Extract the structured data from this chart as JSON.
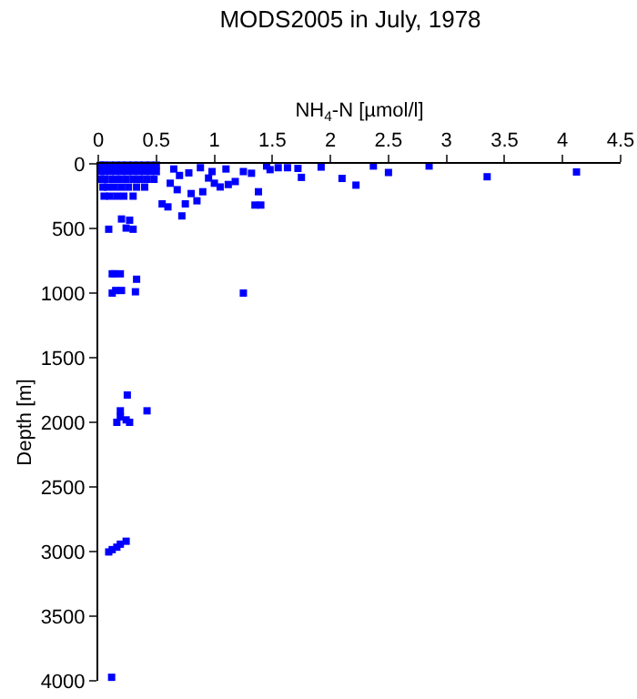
{
  "chart_data": {
    "type": "scatter",
    "title": "MODS2005 in July, 1978",
    "xlabel": "NH$_{4}$-N [µmol/l]",
    "ylabel": "Depth [m]",
    "x": [
      4.12,
      3.35,
      2.85,
      2.5,
      2.37,
      2.22,
      2.1,
      1.92,
      1.75,
      1.72,
      1.63,
      1.55,
      1.45,
      1.48,
      1.38,
      1.35,
      1.4,
      1.32,
      1.25,
      1.18,
      1.12,
      1.05,
      1.0,
      0.95,
      0.9,
      0.85,
      0.8,
      0.75,
      0.72,
      0.6,
      0.55,
      0.5,
      0.45,
      0.4,
      0.35,
      0.3,
      0.25,
      0.2,
      0.15,
      0.1,
      0.05,
      0.02,
      0.5,
      0.45,
      0.4,
      0.35,
      0.3,
      0.25,
      0.2,
      0.15,
      0.1,
      0.05,
      0.02,
      0.48,
      0.42,
      0.36,
      0.3,
      0.24,
      0.18,
      0.12,
      0.06,
      0.03,
      0.4,
      0.33,
      0.26,
      0.2,
      0.14,
      0.08,
      0.04,
      0.3,
      0.22,
      0.16,
      0.1,
      0.05,
      0.65,
      0.7,
      0.78,
      0.88,
      0.98,
      1.1,
      0.62,
      0.68,
      0.2,
      0.27,
      0.24,
      0.3,
      0.09,
      0.12,
      0.14,
      0.19,
      0.33,
      0.12,
      0.15,
      0.2,
      0.32,
      1.25,
      0.25,
      0.42,
      0.19,
      0.19,
      0.24,
      0.27,
      0.16,
      0.09,
      0.12,
      0.16,
      0.19,
      0.24,
      0.115
    ],
    "values": [
      63,
      100,
      17,
      67,
      17,
      165,
      113,
      25,
      105,
      35,
      30,
      30,
      17,
      45,
      216,
      319,
      319,
      73,
      60,
      137,
      160,
      179,
      150,
      110,
      216,
      286,
      230,
      310,
      403,
      333,
      310,
      10,
      10,
      10,
      10,
      10,
      10,
      10,
      10,
      10,
      10,
      10,
      60,
      60,
      60,
      60,
      60,
      60,
      60,
      60,
      60,
      60,
      60,
      120,
      120,
      120,
      120,
      120,
      120,
      120,
      120,
      120,
      180,
      180,
      180,
      180,
      180,
      180,
      180,
      250,
      250,
      250,
      250,
      250,
      40,
      90,
      70,
      30,
      60,
      40,
      150,
      200,
      427,
      436,
      497,
      506,
      506,
      851,
      851,
      851,
      893,
      1000,
      980,
      980,
      990,
      1000,
      1789,
      1911,
      1911,
      1958,
      1981,
      2000,
      2000,
      3003,
      2985,
      2966,
      2943,
      2920,
      3973
    ],
    "color": "#0000ff",
    "marker": "square",
    "xlim": [
      0,
      4.5
    ],
    "xticks": [
      0,
      0.5,
      1,
      1.5,
      2,
      2.5,
      3,
      3.5,
      4,
      4.5
    ],
    "ylim": [
      4000,
      0
    ],
    "yticks": [
      0,
      500,
      1000,
      1500,
      2000,
      2500,
      3000,
      3500,
      4000
    ],
    "grid": false,
    "legend": false
  }
}
